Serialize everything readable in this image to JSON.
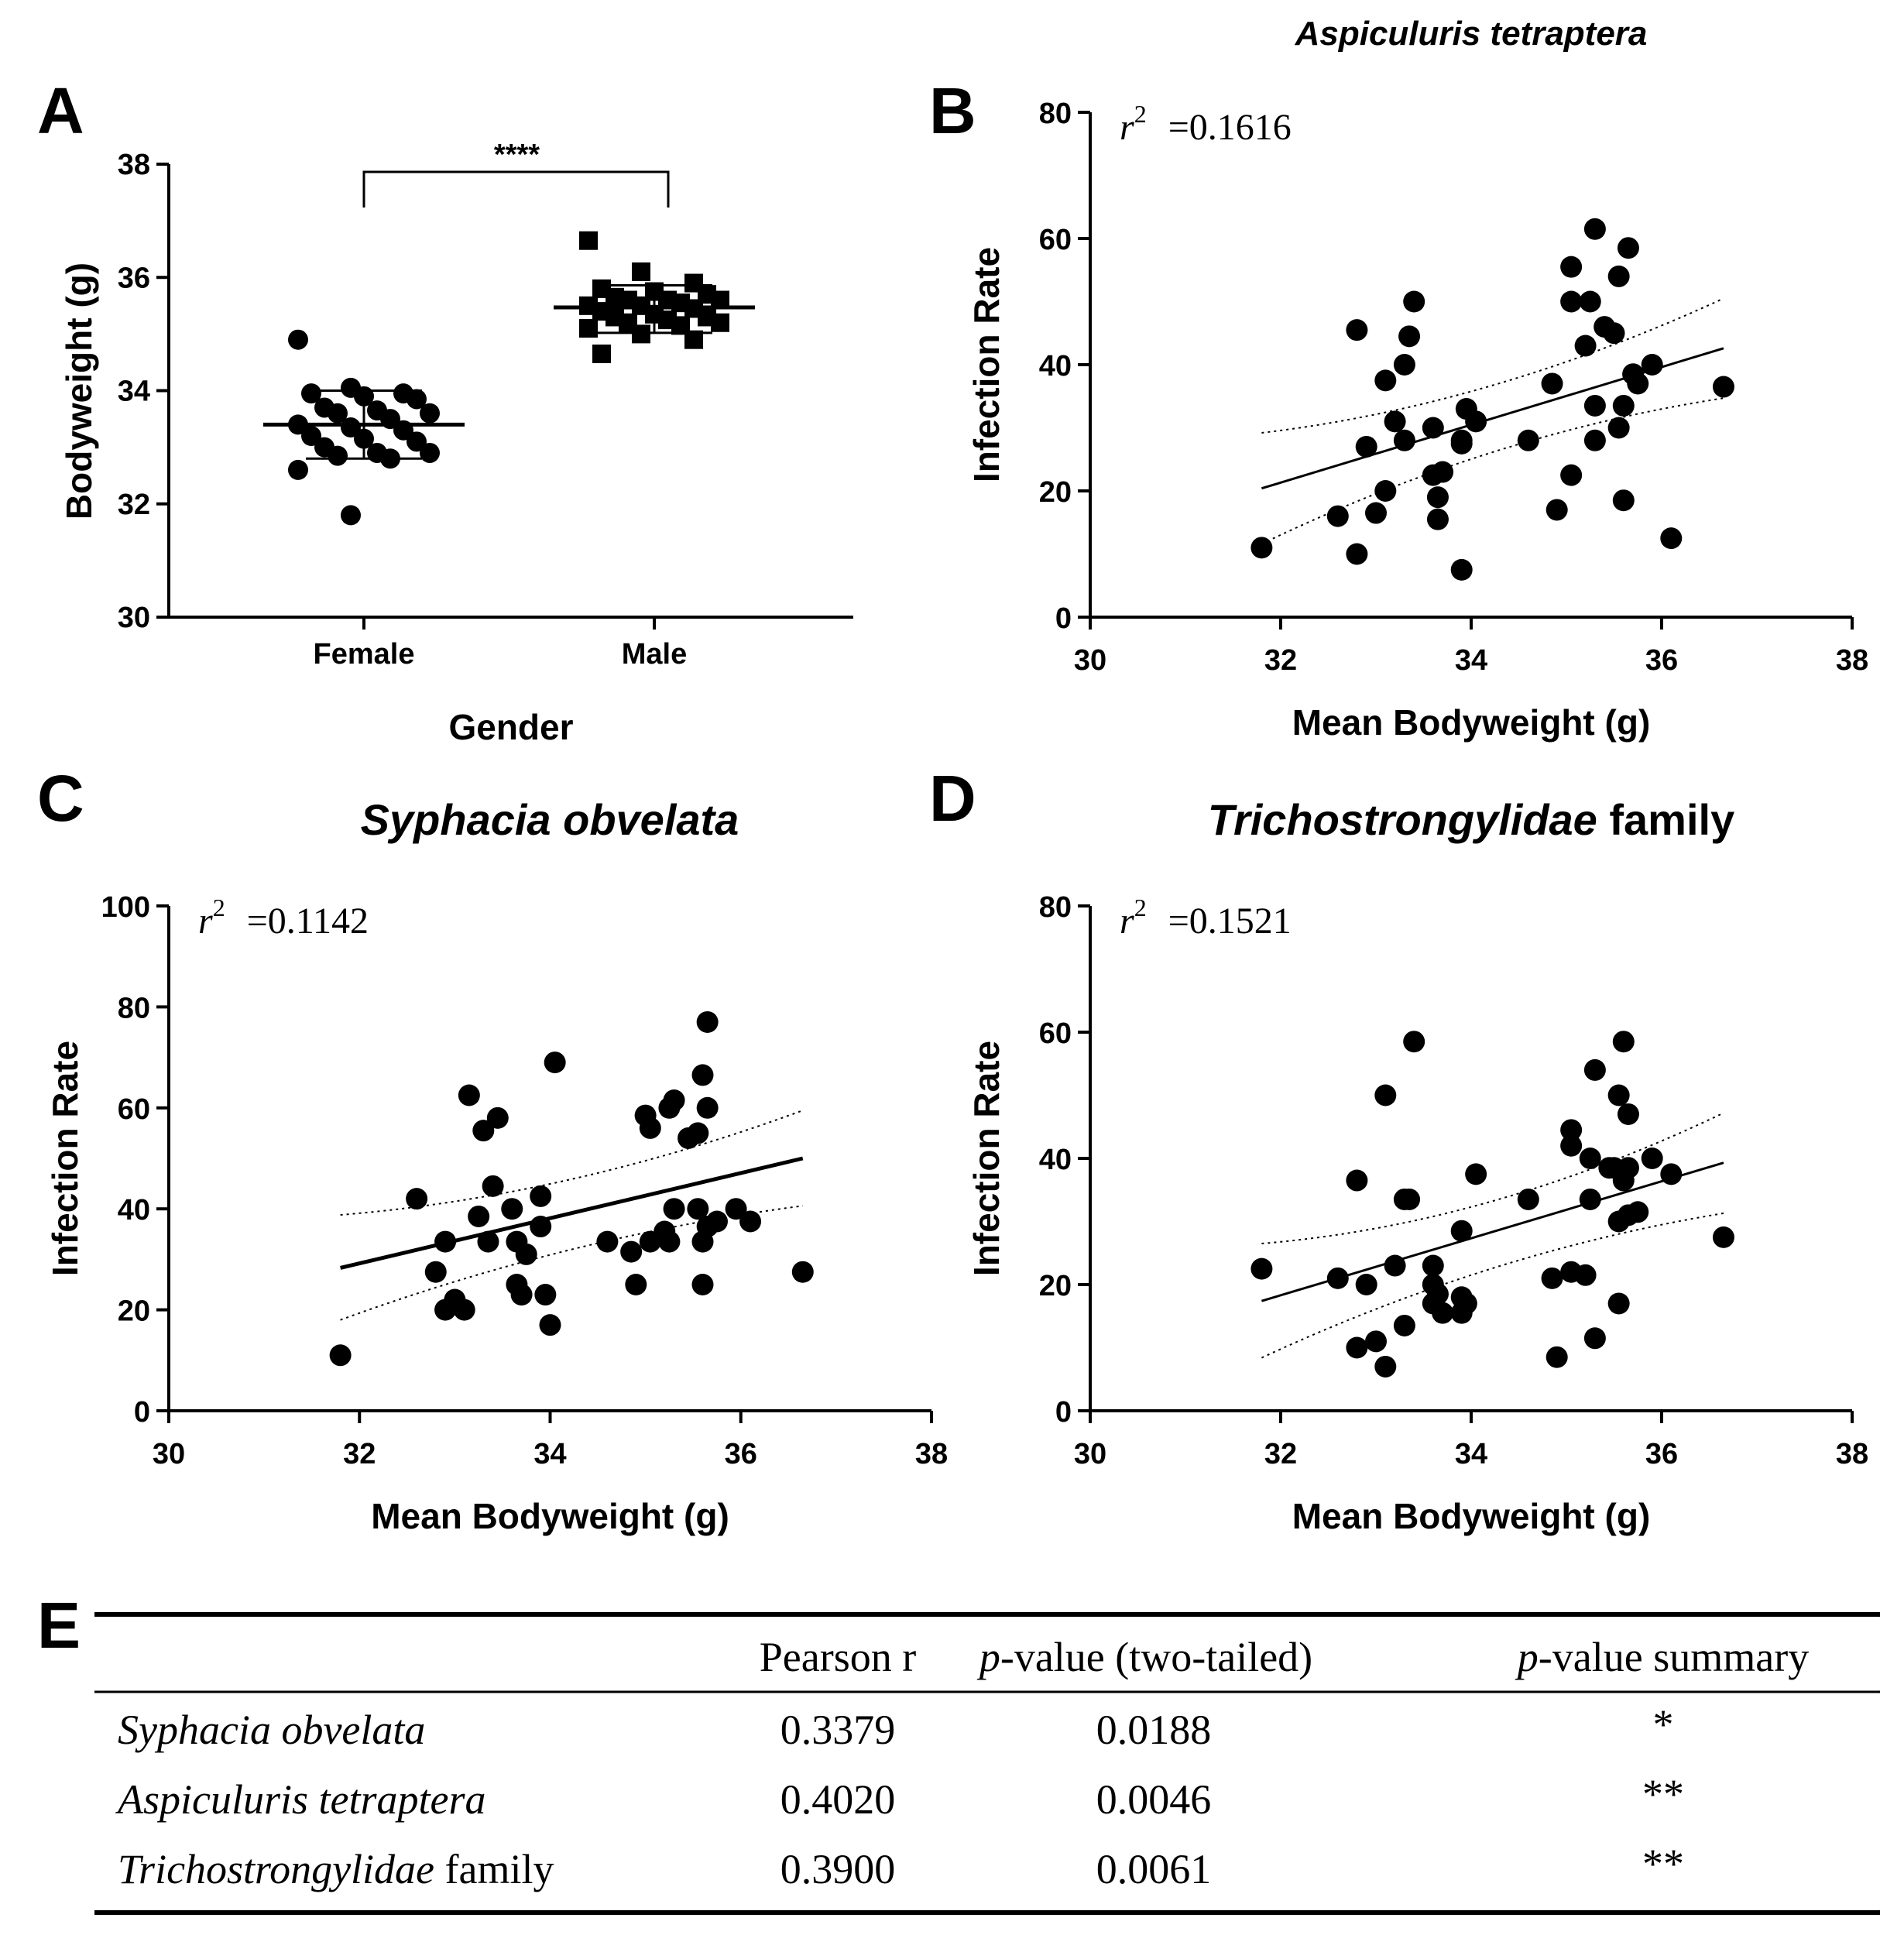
{
  "chart_data": [
    {
      "panel": "A",
      "type": "scatter",
      "title": "",
      "xlabel": "Gender",
      "ylabel": "Bodyweight (g)",
      "categories": [
        "Female",
        "Male"
      ],
      "ylim": [
        30,
        38
      ],
      "yticks": [
        "30",
        "32",
        "34",
        "36",
        "38"
      ],
      "significance": "****",
      "series": [
        {
          "name": "Female",
          "marker": "circle",
          "mean": 33.4,
          "sd_low": 32.8,
          "sd_high": 34.0,
          "values": [
            34.9,
            34.05,
            33.95,
            33.95,
            33.9,
            33.85,
            33.7,
            33.65,
            33.6,
            33.6,
            33.5,
            33.4,
            33.35,
            33.3,
            33.2,
            33.15,
            33.1,
            33.0,
            32.9,
            32.9,
            32.85,
            32.8,
            32.6,
            31.8
          ]
        },
        {
          "name": "Male",
          "marker": "square",
          "mean": 35.47,
          "sd_low": 35.02,
          "sd_high": 35.86,
          "values": [
            36.65,
            36.1,
            35.9,
            35.8,
            35.75,
            35.7,
            35.65,
            35.6,
            35.6,
            35.6,
            35.55,
            35.5,
            35.5,
            35.45,
            35.4,
            35.35,
            35.3,
            35.3,
            35.25,
            35.2,
            35.2,
            35.15,
            35.1,
            35.0,
            34.9,
            34.65
          ]
        }
      ]
    },
    {
      "panel": "B",
      "type": "scatter",
      "title": "Aspiculuris tetraptera",
      "r2_label": "r",
      "r2_sup": "2",
      "r2_value": "=0.1616",
      "xlabel": "Mean Bodyweight (g)",
      "ylabel": "Infection Rate",
      "xlim": [
        30,
        38
      ],
      "ylim": [
        0,
        80
      ],
      "xticks": [
        "30",
        "32",
        "34",
        "36",
        "38"
      ],
      "yticks": [
        "0",
        "20",
        "40",
        "60",
        "80"
      ],
      "fit": {
        "x": [
          31.8,
          36.65
        ],
        "y": [
          20.4,
          42.6
        ]
      },
      "ci_upper": {
        "x": [
          31.8,
          34.2,
          36.65
        ],
        "y": [
          29.2,
          33.5,
          50.5
        ]
      },
      "ci_lower": {
        "x": [
          31.8,
          34.2,
          36.65
        ],
        "y": [
          11.6,
          29.0,
          34.7
        ]
      },
      "points": [
        [
          31.8,
          11
        ],
        [
          32.8,
          45.5
        ],
        [
          32.8,
          10
        ],
        [
          32.9,
          27
        ],
        [
          32.6,
          16
        ],
        [
          33.0,
          16.5
        ],
        [
          33.1,
          20
        ],
        [
          33.1,
          37.5
        ],
        [
          33.2,
          31
        ],
        [
          33.3,
          28
        ],
        [
          33.3,
          40
        ],
        [
          33.35,
          44.5
        ],
        [
          33.4,
          50
        ],
        [
          33.6,
          30
        ],
        [
          33.6,
          22.5
        ],
        [
          33.65,
          19
        ],
        [
          33.65,
          15.5
        ],
        [
          33.7,
          23
        ],
        [
          33.9,
          7.5
        ],
        [
          33.9,
          28
        ],
        [
          33.95,
          33
        ],
        [
          33.9,
          27.5
        ],
        [
          34.05,
          31
        ],
        [
          34.6,
          28
        ],
        [
          34.85,
          37
        ],
        [
          34.9,
          17
        ],
        [
          35.05,
          50
        ],
        [
          35.05,
          55.5
        ],
        [
          35.05,
          22.5
        ],
        [
          35.2,
          43
        ],
        [
          35.25,
          50
        ],
        [
          35.3,
          61.5
        ],
        [
          35.3,
          33.5
        ],
        [
          35.3,
          28
        ],
        [
          35.4,
          46
        ],
        [
          35.5,
          45
        ],
        [
          35.55,
          54
        ],
        [
          35.55,
          30
        ],
        [
          35.6,
          33.5
        ],
        [
          35.6,
          18.5
        ],
        [
          35.65,
          58.5
        ],
        [
          35.7,
          38.5
        ],
        [
          35.75,
          37
        ],
        [
          35.9,
          40
        ],
        [
          36.1,
          12.5
        ],
        [
          36.65,
          36.5
        ]
      ]
    },
    {
      "panel": "C",
      "type": "scatter",
      "title": "Syphacia obvelata",
      "r2_label": "r",
      "r2_sup": "2",
      "r2_value": "=0.1142",
      "xlabel": "Mean Bodyweight (g)",
      "ylabel": "Infection Rate",
      "xlim": [
        30,
        38
      ],
      "ylim": [
        0,
        100
      ],
      "xticks": [
        "30",
        "32",
        "34",
        "36",
        "38"
      ],
      "yticks": [
        "0",
        "20",
        "40",
        "60",
        "80",
        "100"
      ],
      "fit": {
        "x": [
          31.8,
          36.65
        ],
        "y": [
          28.3,
          50.0
        ]
      },
      "ci_upper": {
        "x": [
          31.8,
          34.2,
          36.65
        ],
        "y": [
          38.8,
          42.5,
          59.5
        ]
      },
      "ci_lower": {
        "x": [
          31.8,
          34.2,
          36.65
        ],
        "y": [
          18.0,
          34.5,
          40.6
        ]
      },
      "points": [
        [
          31.8,
          11
        ],
        [
          32.6,
          42
        ],
        [
          32.8,
          27.5
        ],
        [
          32.9,
          20
        ],
        [
          32.9,
          33.5
        ],
        [
          33.0,
          22
        ],
        [
          33.1,
          20
        ],
        [
          33.15,
          62.5
        ],
        [
          33.25,
          38.5
        ],
        [
          33.3,
          55.5
        ],
        [
          33.35,
          33.5
        ],
        [
          33.4,
          44.5
        ],
        [
          33.45,
          58
        ],
        [
          33.6,
          40
        ],
        [
          33.65,
          33.5
        ],
        [
          33.65,
          25
        ],
        [
          33.7,
          23
        ],
        [
          33.75,
          31
        ],
        [
          33.9,
          36.5
        ],
        [
          33.9,
          42.5
        ],
        [
          33.95,
          23
        ],
        [
          34.0,
          17
        ],
        [
          34.05,
          69
        ],
        [
          34.6,
          33.5
        ],
        [
          34.85,
          31.5
        ],
        [
          34.9,
          25
        ],
        [
          35.0,
          58.5
        ],
        [
          35.05,
          33.5
        ],
        [
          35.05,
          56
        ],
        [
          35.2,
          35.5
        ],
        [
          35.25,
          60
        ],
        [
          35.25,
          33.5
        ],
        [
          35.3,
          61.5
        ],
        [
          35.3,
          40
        ],
        [
          35.45,
          54
        ],
        [
          35.55,
          55
        ],
        [
          35.55,
          40
        ],
        [
          35.6,
          33.5
        ],
        [
          35.6,
          25
        ],
        [
          35.6,
          66.5
        ],
        [
          35.65,
          60
        ],
        [
          35.65,
          77
        ],
        [
          35.65,
          36.5
        ],
        [
          35.75,
          37.5
        ],
        [
          35.95,
          40
        ],
        [
          36.1,
          37.5
        ],
        [
          36.65,
          27.5
        ]
      ]
    },
    {
      "panel": "D",
      "type": "scatter",
      "title": "Trichostrongylidae",
      "title_suffix": " family",
      "r2_label": "r",
      "r2_sup": "2",
      "r2_value": "=0.1521",
      "xlabel": "Mean Bodyweight (g)",
      "ylabel": "Infection Rate",
      "xlim": [
        30,
        38
      ],
      "ylim": [
        0,
        80
      ],
      "xticks": [
        "30",
        "32",
        "34",
        "36",
        "38"
      ],
      "yticks": [
        "0",
        "20",
        "40",
        "60",
        "80"
      ],
      "fit": {
        "x": [
          31.8,
          36.65
        ],
        "y": [
          17.4,
          39.3
        ]
      },
      "ci_upper": {
        "x": [
          31.8,
          34.2,
          36.65
        ],
        "y": [
          26.5,
          29.5,
          47.2
        ]
      },
      "ci_lower": {
        "x": [
          31.8,
          34.2,
          36.65
        ],
        "y": [
          8.4,
          25.2,
          31.3
        ]
      },
      "points": [
        [
          31.8,
          22.5
        ],
        [
          32.6,
          21
        ],
        [
          32.8,
          36.5
        ],
        [
          32.8,
          10
        ],
        [
          32.9,
          20
        ],
        [
          33.0,
          11
        ],
        [
          33.1,
          50
        ],
        [
          33.1,
          7
        ],
        [
          33.2,
          23
        ],
        [
          33.3,
          33.5
        ],
        [
          33.3,
          13.5
        ],
        [
          33.35,
          33.5
        ],
        [
          33.4,
          58.5
        ],
        [
          33.6,
          20
        ],
        [
          33.6,
          17
        ],
        [
          33.6,
          23
        ],
        [
          33.65,
          18.5
        ],
        [
          33.7,
          15.5
        ],
        [
          33.9,
          28.5
        ],
        [
          33.9,
          18
        ],
        [
          33.9,
          15.5
        ],
        [
          33.95,
          17
        ],
        [
          34.05,
          37.5
        ],
        [
          34.6,
          33.5
        ],
        [
          34.85,
          21
        ],
        [
          34.9,
          8.5
        ],
        [
          35.05,
          42
        ],
        [
          35.05,
          44.5
        ],
        [
          35.05,
          22
        ],
        [
          35.2,
          21.5
        ],
        [
          35.25,
          40
        ],
        [
          35.25,
          33.5
        ],
        [
          35.3,
          54
        ],
        [
          35.3,
          11.5
        ],
        [
          35.45,
          38.5
        ],
        [
          35.5,
          38.5
        ],
        [
          35.55,
          50
        ],
        [
          35.55,
          30
        ],
        [
          35.55,
          17
        ],
        [
          35.6,
          58.5
        ],
        [
          35.6,
          36.5
        ],
        [
          35.65,
          47
        ],
        [
          35.65,
          38.5
        ],
        [
          35.65,
          31
        ],
        [
          35.75,
          31.5
        ],
        [
          35.9,
          40
        ],
        [
          36.1,
          37.5
        ],
        [
          36.65,
          27.5
        ]
      ]
    },
    {
      "panel": "E",
      "type": "table",
      "headers": [
        "",
        "Pearson r",
        "p-value (two-tailed)",
        "p-value summary"
      ],
      "rows": [
        {
          "name": "Syphacia obvelata",
          "name_suffix": "",
          "r": "0.3379",
          "p": "0.0188",
          "summary": "*"
        },
        {
          "name": "Aspiculuris tetraptera",
          "name_suffix": "",
          "r": "0.4020",
          "p": "0.0046",
          "summary": "**"
        },
        {
          "name": "Trichostrongylidae",
          "name_suffix": " family",
          "r": "0.3900",
          "p": "0.0061",
          "summary": "**"
        }
      ]
    }
  ],
  "labels": {
    "panel_a": "A",
    "panel_b": "B",
    "panel_c": "C",
    "panel_d": "D",
    "panel_e": "E",
    "table_header_r": "Pearson r",
    "table_header_p_italic": "p",
    "table_header_p_rest": "-value (two-tailed)",
    "table_header_s_italic": "p",
    "table_header_s_rest": "-value summary"
  }
}
